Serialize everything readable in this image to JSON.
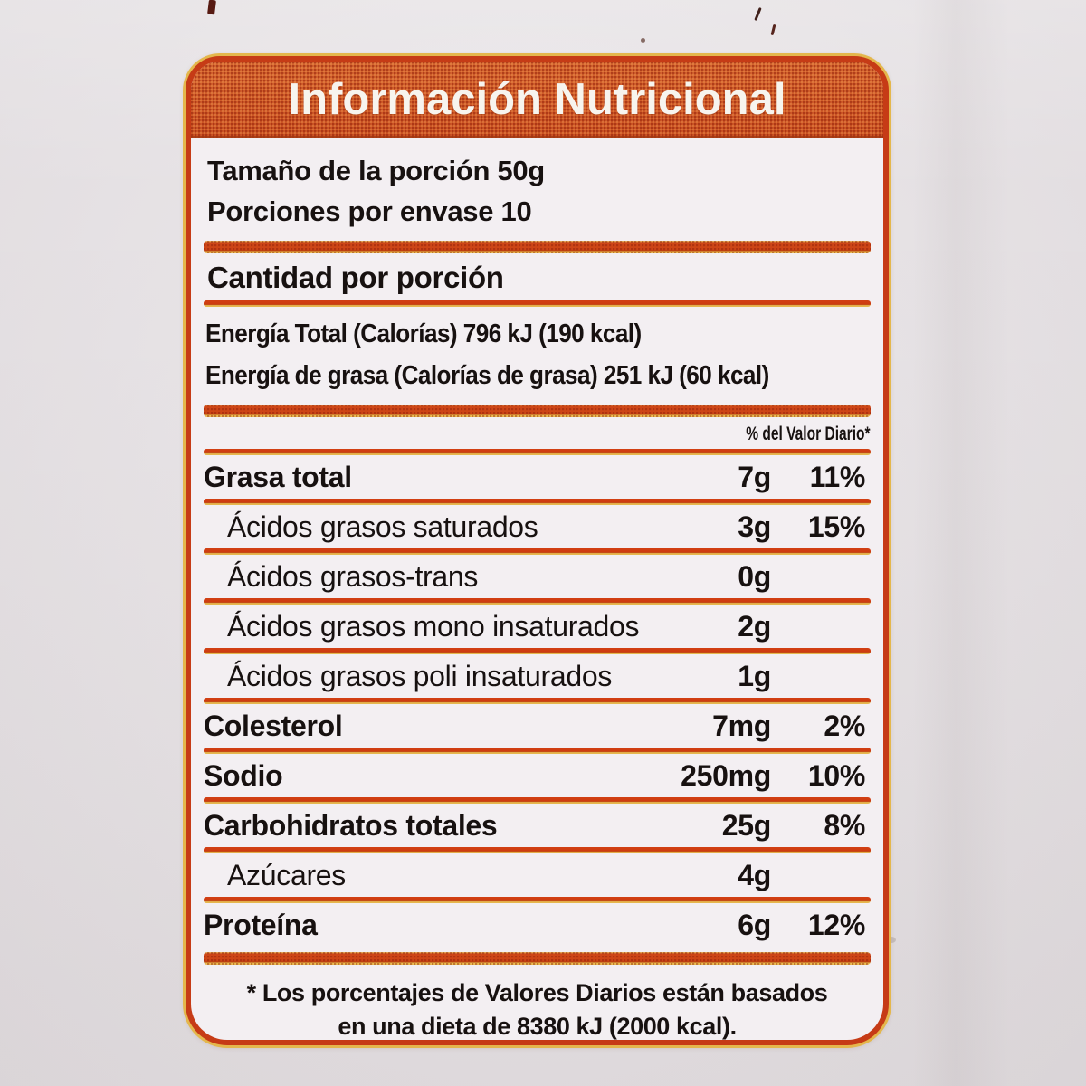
{
  "label": {
    "title": "Información Nutricional",
    "serving": {
      "size_line": "Tamaño de la porción 50g",
      "per_container_line": "Porciones por envase 10"
    },
    "amount_header": "Cantidad por porción",
    "energy_lines": [
      "Energía Total (Calorías) 796 kJ (190 kcal)",
      "Energía de grasa (Calorías de grasa) 251 kJ (60 kcal)"
    ],
    "dv_header": "% del Valor Diario*",
    "rows": [
      {
        "label": "Grasa total",
        "amount": "7g",
        "dv": "11%",
        "level": "main"
      },
      {
        "label": "Ácidos grasos saturados",
        "amount": "3g",
        "dv": "15%",
        "level": "sub"
      },
      {
        "label": "Ácidos grasos-trans",
        "amount": "0g",
        "dv": "",
        "level": "sub"
      },
      {
        "label": "Ácidos grasos mono insaturados",
        "amount": "2g",
        "dv": "",
        "level": "sub"
      },
      {
        "label": "Ácidos grasos poli insaturados",
        "amount": "1g",
        "dv": "",
        "level": "sub"
      },
      {
        "label": "Colesterol",
        "amount": "7mg",
        "dv": "2%",
        "level": "main"
      },
      {
        "label": "Sodio",
        "amount": "250mg",
        "dv": "10%",
        "level": "main"
      },
      {
        "label": "Carbohidratos totales",
        "amount": "25g",
        "dv": "8%",
        "level": "main"
      },
      {
        "label": "Azúcares",
        "amount": "4g",
        "dv": "",
        "level": "sub"
      },
      {
        "label": "Proteína",
        "amount": "6g",
        "dv": "12%",
        "level": "main"
      }
    ],
    "footnote_lines": [
      "* Los porcentajes de Valores Diarios están basados",
      "en una dieta de 8380 kJ (2000 kcal)."
    ],
    "colors": {
      "accent_orange": "#cc5228",
      "rule_red": "#d13f14",
      "rule_yellow": "#e8bb4d",
      "text": "#171110",
      "panel_bg": "#f3eff2",
      "photo_bg": "#e9e5e8"
    }
  }
}
